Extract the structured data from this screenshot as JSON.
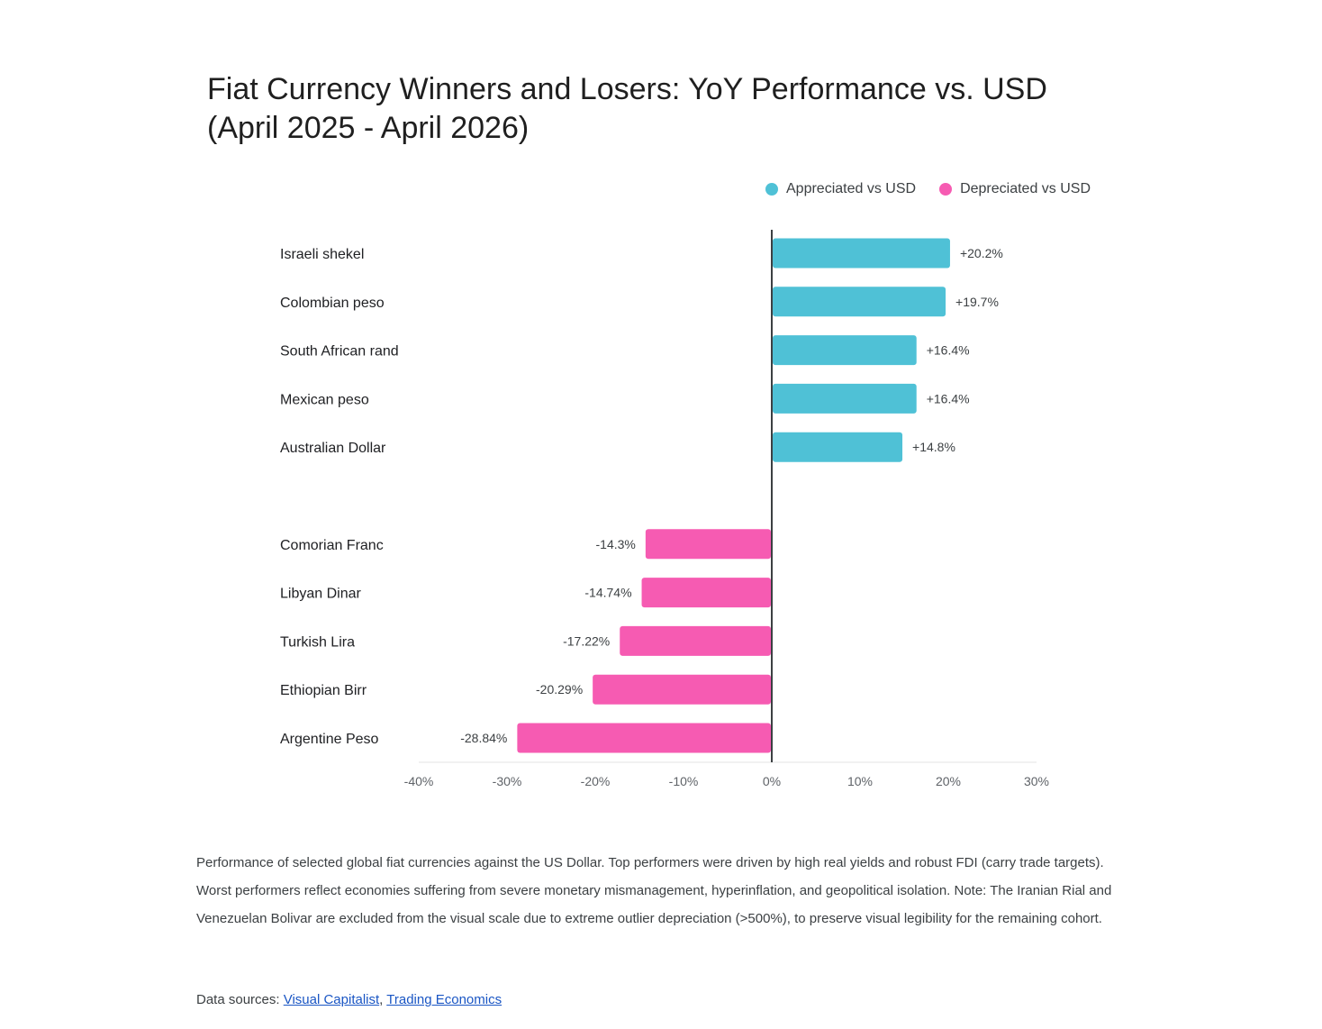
{
  "title_lines": [
    "Fiat Currency Winners and Losers: YoY Performance vs. USD",
    "(April 2025 - April 2026)"
  ],
  "legend": [
    {
      "label": "Appreciated vs USD",
      "color": "#4fc1d6"
    },
    {
      "label": "Depreciated vs USD",
      "color": "#f65bb2"
    }
  ],
  "chart_data": {
    "type": "bar",
    "orientation": "horizontal",
    "title": "Fiat Currency Winners and Losers: YoY Performance vs. USD (April 2025 - April 2026)",
    "xlim": [
      -40,
      30
    ],
    "x_ticks": [
      -40,
      -30,
      -20,
      -10,
      0,
      10,
      20,
      30
    ],
    "x_tick_labels": [
      "-40%",
      "-30%",
      "-20%",
      "-10%",
      "0%",
      "10%",
      "20%",
      "30%"
    ],
    "grid": false,
    "legend_position": "top-right",
    "groups": [
      {
        "name": "Appreciated vs USD",
        "color": "#4fc1d6",
        "items": [
          {
            "label": "Israeli shekel",
            "value": 20.2,
            "value_label": "+20.2%"
          },
          {
            "label": "Colombian peso",
            "value": 19.7,
            "value_label": "+19.7%"
          },
          {
            "label": "South African rand",
            "value": 16.4,
            "value_label": "+16.4%"
          },
          {
            "label": "Mexican peso",
            "value": 16.4,
            "value_label": "+16.4%"
          },
          {
            "label": "Australian Dollar",
            "value": 14.8,
            "value_label": "+14.8%"
          }
        ]
      },
      {
        "name": "Depreciated vs USD",
        "color": "#f65bb2",
        "items": [
          {
            "label": "Comorian Franc",
            "value": -14.3,
            "value_label": "-14.3%"
          },
          {
            "label": "Libyan Dinar",
            "value": -14.74,
            "value_label": "-14.74%"
          },
          {
            "label": "Turkish Lira",
            "value": -17.22,
            "value_label": "-17.22%"
          },
          {
            "label": "Ethiopian Birr",
            "value": -20.29,
            "value_label": "-20.29%"
          },
          {
            "label": "Argentine Peso",
            "value": -28.84,
            "value_label": "-28.84%"
          }
        ]
      }
    ]
  },
  "caption": "Performance of selected global fiat currencies against the US Dollar. Top performers were driven by high real yields and robust FDI (carry trade targets). Worst performers reflect economies suffering from severe monetary mismanagement, hyperinflation, and geopolitical isolation. Note: The Iranian Rial and Venezuelan Bolivar are excluded from the visual scale due to extreme outlier depreciation (>500%), to preserve visual legibility for the remaining cohort.",
  "sources": {
    "prefix": "Data sources:",
    "links": [
      "Visual Capitalist",
      "Trading Economics"
    ],
    "separator": ","
  }
}
